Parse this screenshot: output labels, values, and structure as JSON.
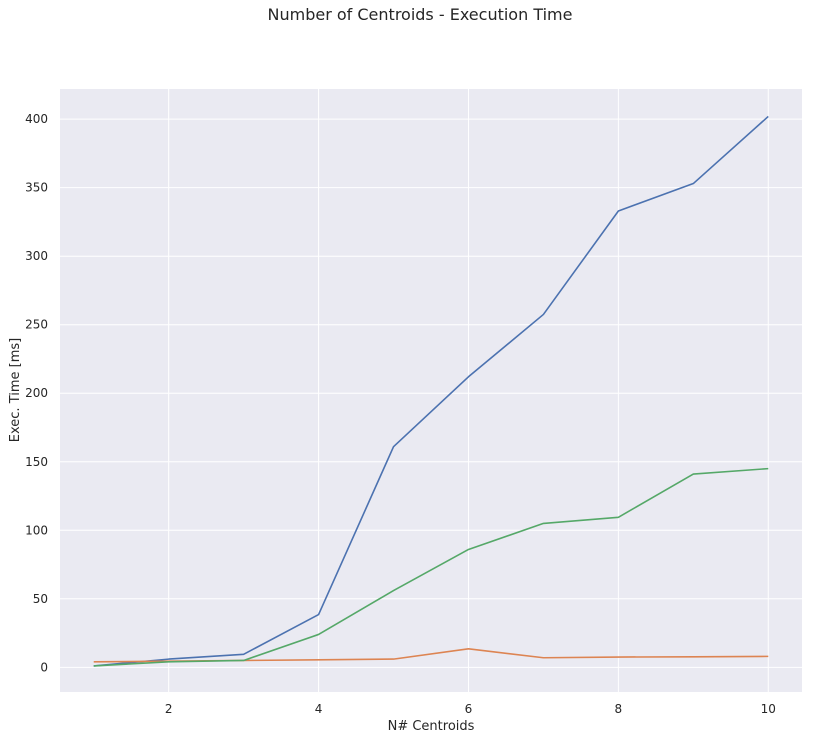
{
  "chart_data": {
    "type": "line",
    "title": "Number of Centroids - Execution Time",
    "xlabel": "N# Centroids",
    "ylabel": "Exec. Time [ms]",
    "x": [
      1,
      2,
      3,
      4,
      5,
      6,
      7,
      8,
      9,
      10
    ],
    "xlim": [
      0.55,
      10.45
    ],
    "ylim": [
      -18,
      422
    ],
    "xticks": [
      2,
      4,
      6,
      8,
      10
    ],
    "yticks": [
      0,
      50,
      100,
      150,
      200,
      250,
      300,
      350,
      400
    ],
    "grid": true,
    "legend": false,
    "background": "#eaeaf2",
    "series": [
      {
        "color": "#4c72b0",
        "values": [
          1,
          6,
          9.5,
          38.5,
          161,
          212,
          257.5,
          333,
          353,
          402
        ]
      },
      {
        "color": "#dd8452",
        "values": [
          4,
          4.5,
          5,
          5.5,
          6,
          13.5,
          7,
          7.5,
          7.7,
          8
        ]
      },
      {
        "color": "#55a868",
        "values": [
          1,
          4,
          5,
          24,
          56,
          86,
          105,
          109.5,
          141,
          145
        ]
      }
    ]
  }
}
